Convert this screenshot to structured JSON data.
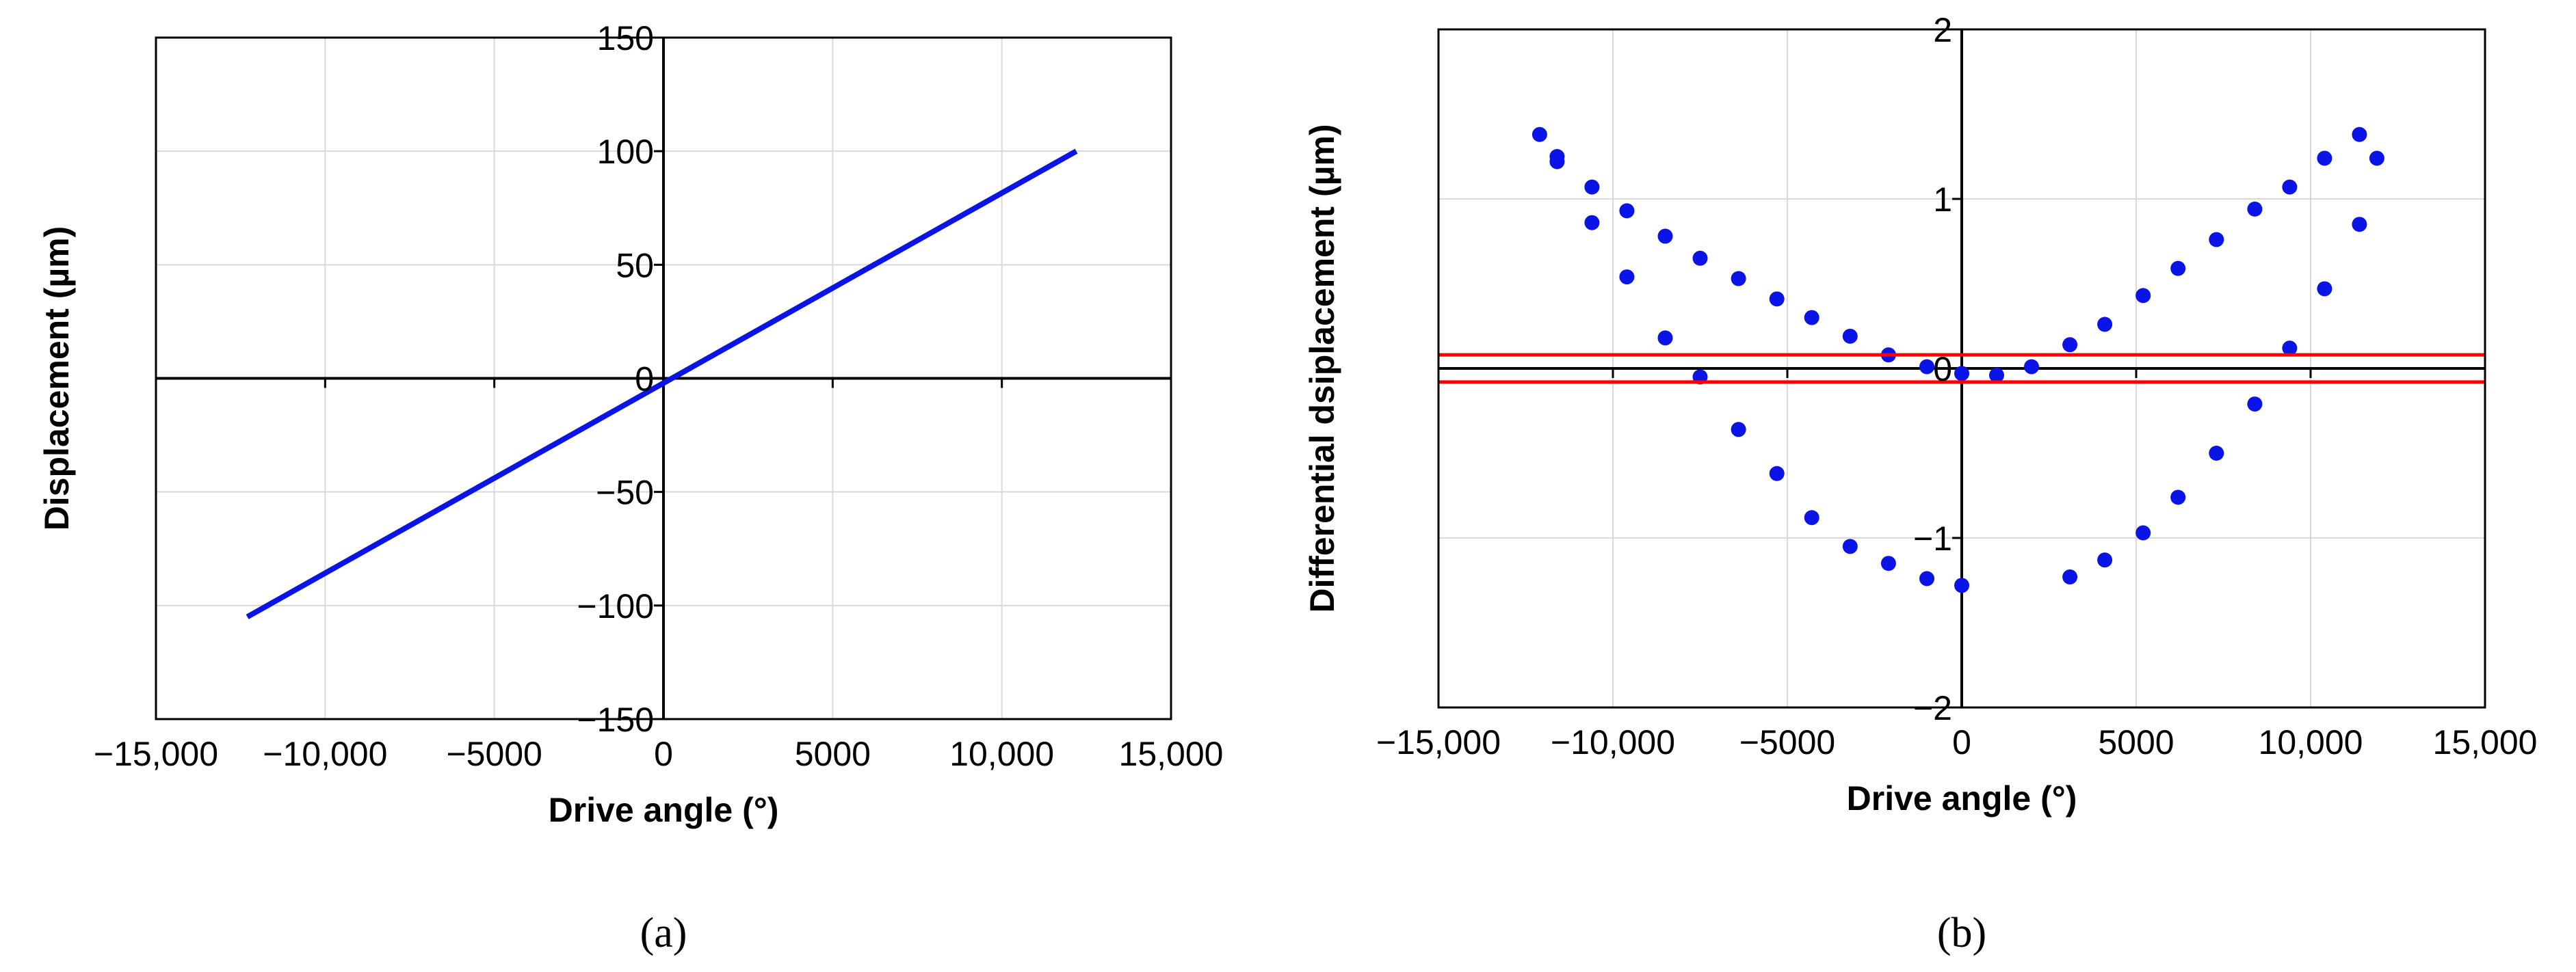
{
  "chart_data": [
    {
      "panel": "(a)",
      "type": "line",
      "title": "",
      "xlabel": "Drive angle (°)",
      "ylabel": "Displacement (µm)",
      "xlim": [
        -15000,
        15000
      ],
      "ylim": [
        -150,
        150
      ],
      "x_ticks": [
        -15000,
        -10000,
        -5000,
        0,
        5000,
        10000,
        15000
      ],
      "x_tick_labels": [
        "−15,000",
        "−10,000",
        "−5000",
        "0",
        "5000",
        "10,000",
        "15,000"
      ],
      "y_ticks": [
        -150,
        -100,
        -50,
        0,
        50,
        100,
        150
      ],
      "y_tick_labels": [
        "−150",
        "−100",
        "−50",
        "0",
        "50",
        "100",
        "150"
      ],
      "grid": true,
      "colors": {
        "line": "#0a14e6"
      },
      "series": [
        {
          "x": [
            -12300,
            12200
          ],
          "y": [
            -105,
            100
          ]
        }
      ]
    },
    {
      "panel": "(b)",
      "type": "scatter",
      "title": "",
      "xlabel": "Drive angle (°)",
      "ylabel": "Differential dsiplacement (µm)",
      "xlim": [
        -15000,
        15000
      ],
      "ylim": [
        -2,
        2
      ],
      "x_ticks": [
        -15000,
        -10000,
        -5000,
        0,
        5000,
        10000,
        15000
      ],
      "x_tick_labels": [
        "−15,000",
        "−10,000",
        "−5000",
        "0",
        "5000",
        "10,000",
        "15,000"
      ],
      "y_ticks": [
        -2,
        -1,
        0,
        1,
        2
      ],
      "y_tick_labels": [
        "−2",
        "−1",
        "0",
        "1",
        "2"
      ],
      "grid": true,
      "colors": {
        "points": "#0a14e6",
        "reference_lines": "#ff0000"
      },
      "reference_lines_y": [
        0.08,
        -0.08
      ],
      "series": [
        {
          "x": [
            -12100,
            -11600,
            -11600,
            -10600,
            -10600,
            -9600,
            -9600,
            -8500,
            -8500,
            -7500,
            -7500,
            -6400,
            -6400,
            -5300,
            -5300,
            -4300,
            -4300,
            -3200,
            -3200,
            -2100,
            -2100,
            -1000,
            -1000,
            0,
            0,
            1000,
            2000,
            3100,
            3100,
            4100,
            4100,
            5200,
            5200,
            6200,
            6200,
            7300,
            7300,
            8400,
            8400,
            9400,
            9400,
            10400,
            10400,
            11400,
            11400,
            11900
          ],
          "y": [
            1.38,
            1.25,
            1.22,
            1.07,
            0.86,
            0.93,
            0.54,
            0.78,
            0.18,
            0.65,
            -0.05,
            0.53,
            -0.36,
            0.41,
            -0.62,
            0.3,
            -0.88,
            0.19,
            -1.05,
            0.08,
            -1.15,
            0.01,
            -1.24,
            -0.03,
            -1.28,
            -0.04,
            0.01,
            -1.23,
            0.14,
            -1.13,
            0.26,
            -0.97,
            0.43,
            -0.76,
            0.59,
            -0.5,
            0.76,
            -0.21,
            0.94,
            0.12,
            1.07,
            0.47,
            1.24,
            0.85,
            1.38,
            1.24
          ]
        }
      ]
    }
  ]
}
